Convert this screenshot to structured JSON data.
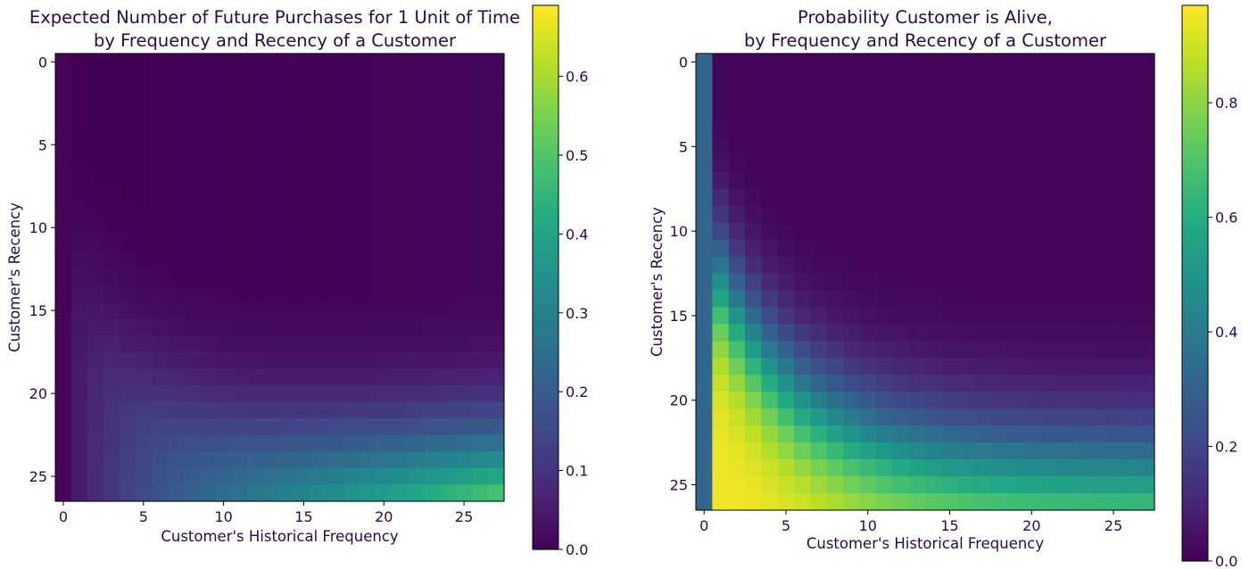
{
  "chart_data": [
    {
      "type": "heatmap",
      "title_lines": [
        "Expected Number of Future Purchases for 1 Unit of Time",
        "by Frequency and Recency of a Customer"
      ],
      "xlabel": "Customer's Historical Frequency",
      "ylabel": "Customer's Recency",
      "x_ticks": [
        0,
        5,
        10,
        15,
        20,
        25
      ],
      "y_ticks": [
        0,
        5,
        10,
        15,
        20,
        25
      ],
      "x_range": [
        0,
        27
      ],
      "y_range": [
        0,
        26
      ],
      "colormap": "viridis",
      "colorbar_range": [
        0.0,
        0.69
      ],
      "colorbar_ticks": [
        "0.0",
        "0.1",
        "0.2",
        "0.3",
        "0.4",
        "0.5",
        "0.6"
      ],
      "colorbar_tick_values": [
        0.0,
        0.1,
        0.2,
        0.3,
        0.4,
        0.5,
        0.6
      ],
      "model": "expected_purchases",
      "max_value": 0.66
    },
    {
      "type": "heatmap",
      "title_lines": [
        "Probability Customer is Alive,",
        "by Frequency and Recency of a Customer"
      ],
      "xlabel": "Customer's Historical Frequency",
      "ylabel": "Customer's Recency",
      "x_ticks": [
        0,
        5,
        10,
        15,
        20,
        25
      ],
      "y_ticks": [
        0,
        5,
        10,
        15,
        20,
        25
      ],
      "x_range": [
        0,
        27
      ],
      "y_range": [
        0,
        26
      ],
      "colormap": "viridis",
      "colorbar_range": [
        0.0,
        0.97
      ],
      "colorbar_ticks": [
        "0.0",
        "0.2",
        "0.4",
        "0.6",
        "0.8"
      ],
      "colorbar_tick_values": [
        0.0,
        0.2,
        0.4,
        0.6,
        0.8
      ],
      "model": "prob_alive",
      "max_value": 0.95
    }
  ]
}
